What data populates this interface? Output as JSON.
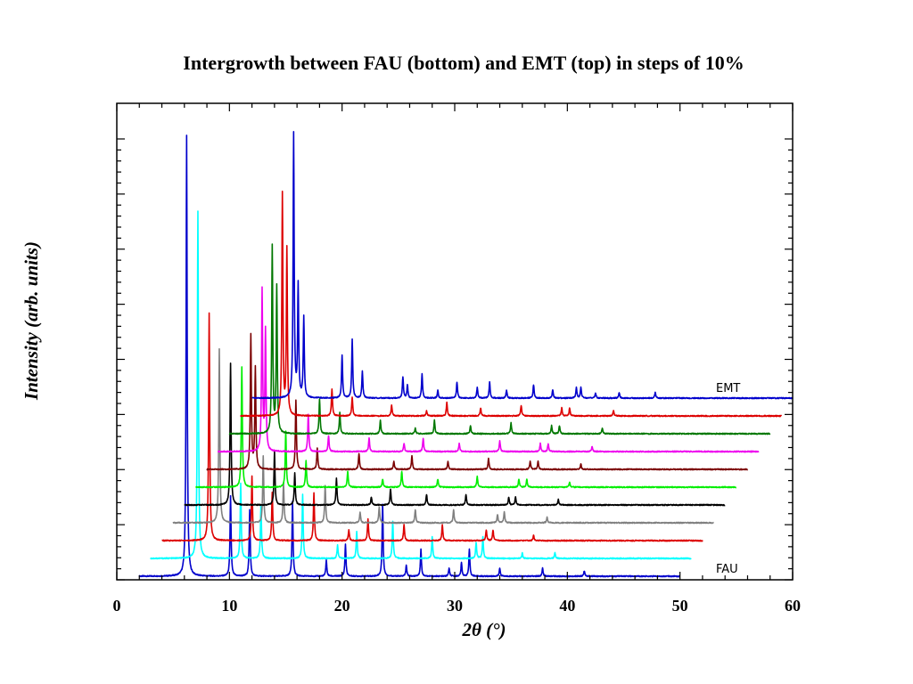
{
  "chart_data": {
    "type": "line",
    "title": "Intergrowth between FAU (bottom) and EMT (top) in steps of 10%",
    "xlabel": "2θ (°)",
    "ylabel": "Intensity (arb. units)",
    "xlim": [
      0,
      60
    ],
    "x_ticks": [
      0,
      10,
      20,
      30,
      40,
      50,
      60
    ],
    "x_tick_labels": [
      "0",
      "10",
      "20",
      "30",
      "40",
      "50",
      "60"
    ],
    "y_scale": "arbitrary",
    "grid": false,
    "stacked_offset_series": true,
    "series_labels": {
      "top": "EMT",
      "bottom": "FAU"
    },
    "series": [
      {
        "color": "#0000cc",
        "x_range": [
          2,
          50
        ],
        "peaks": [
          [
            6.2,
            1.65
          ],
          [
            10.1,
            0.3
          ],
          [
            11.8,
            0.25
          ],
          [
            15.6,
            0.28
          ],
          [
            18.6,
            0.06
          ],
          [
            20.3,
            0.12
          ],
          [
            23.6,
            0.27
          ],
          [
            25.7,
            0.04
          ],
          [
            27.0,
            0.1
          ],
          [
            29.5,
            0.03
          ],
          [
            30.6,
            0.05
          ],
          [
            31.3,
            0.1
          ],
          [
            34.0,
            0.03
          ],
          [
            37.8,
            0.03
          ],
          [
            41.5,
            0.02
          ]
        ]
      },
      {
        "color": "#00ffff",
        "x_range": [
          3,
          51
        ],
        "peaks": [
          [
            7.2,
            1.3
          ],
          [
            11.0,
            0.28
          ],
          [
            12.8,
            0.2
          ],
          [
            16.5,
            0.24
          ],
          [
            19.6,
            0.05
          ],
          [
            21.3,
            0.1
          ],
          [
            24.5,
            0.14
          ],
          [
            28.0,
            0.08
          ],
          [
            31.9,
            0.06
          ],
          [
            32.5,
            0.08
          ],
          [
            36.0,
            0.02
          ],
          [
            38.9,
            0.02
          ]
        ]
      },
      {
        "color": "#dd0000",
        "x_range": [
          4,
          52
        ],
        "peaks": [
          [
            8.2,
            0.85
          ],
          [
            12.0,
            0.24
          ],
          [
            13.8,
            0.18
          ],
          [
            17.5,
            0.18
          ],
          [
            20.6,
            0.04
          ],
          [
            22.3,
            0.08
          ],
          [
            25.5,
            0.06
          ],
          [
            28.9,
            0.06
          ],
          [
            32.8,
            0.04
          ],
          [
            33.4,
            0.04
          ],
          [
            37.0,
            0.02
          ]
        ]
      },
      {
        "color": "#808080",
        "x_range": [
          5,
          53
        ],
        "peaks": [
          [
            9.1,
            0.65
          ],
          [
            13.0,
            0.25
          ],
          [
            14.8,
            0.15
          ],
          [
            18.5,
            0.14
          ],
          [
            21.6,
            0.04
          ],
          [
            23.3,
            0.06
          ],
          [
            26.5,
            0.05
          ],
          [
            29.9,
            0.05
          ],
          [
            33.8,
            0.03
          ],
          [
            34.4,
            0.04
          ],
          [
            38.2,
            0.02
          ]
        ]
      },
      {
        "color": "#000000",
        "x_range": [
          6,
          54
        ],
        "peaks": [
          [
            10.1,
            0.53
          ],
          [
            14.0,
            0.2
          ],
          [
            15.8,
            0.12
          ],
          [
            19.5,
            0.1
          ],
          [
            22.6,
            0.03
          ],
          [
            24.3,
            0.06
          ],
          [
            27.5,
            0.04
          ],
          [
            31.0,
            0.04
          ],
          [
            34.8,
            0.03
          ],
          [
            35.4,
            0.03
          ],
          [
            39.2,
            0.02
          ]
        ]
      },
      {
        "color": "#00ee00",
        "x_range": [
          7,
          55
        ],
        "peaks": [
          [
            11.1,
            0.45
          ],
          [
            15.0,
            0.21
          ],
          [
            16.8,
            0.1
          ],
          [
            20.5,
            0.06
          ],
          [
            23.6,
            0.03
          ],
          [
            25.3,
            0.06
          ],
          [
            28.5,
            0.03
          ],
          [
            32.0,
            0.04
          ],
          [
            35.7,
            0.03
          ],
          [
            36.4,
            0.03
          ],
          [
            40.2,
            0.02
          ]
        ]
      },
      {
        "color": "#7a0000",
        "x_range": [
          8,
          56
        ],
        "peaks": [
          [
            11.9,
            0.5
          ],
          [
            12.3,
            0.38
          ],
          [
            15.9,
            0.26
          ],
          [
            17.8,
            0.08
          ],
          [
            21.5,
            0.06
          ],
          [
            24.6,
            0.03
          ],
          [
            26.2,
            0.05
          ],
          [
            29.4,
            0.03
          ],
          [
            33.0,
            0.04
          ],
          [
            36.7,
            0.03
          ],
          [
            37.4,
            0.03
          ],
          [
            41.2,
            0.02
          ]
        ]
      },
      {
        "color": "#ee00ee",
        "x_range": [
          9,
          57
        ],
        "peaks": [
          [
            12.9,
            0.6
          ],
          [
            13.2,
            0.45
          ],
          [
            17.0,
            0.14
          ],
          [
            18.8,
            0.06
          ],
          [
            22.4,
            0.05
          ],
          [
            25.5,
            0.03
          ],
          [
            27.2,
            0.05
          ],
          [
            30.4,
            0.03
          ],
          [
            34.0,
            0.04
          ],
          [
            37.6,
            0.03
          ],
          [
            38.3,
            0.03
          ],
          [
            42.2,
            0.02
          ]
        ]
      },
      {
        "color": "#007700",
        "x_range": [
          10,
          58
        ],
        "peaks": [
          [
            13.8,
            0.7
          ],
          [
            14.2,
            0.55
          ],
          [
            18.0,
            0.13
          ],
          [
            19.8,
            0.08
          ],
          [
            23.4,
            0.05
          ],
          [
            26.5,
            0.02
          ],
          [
            28.2,
            0.05
          ],
          [
            31.4,
            0.03
          ],
          [
            35.0,
            0.04
          ],
          [
            38.6,
            0.03
          ],
          [
            39.3,
            0.03
          ],
          [
            43.1,
            0.02
          ]
        ]
      },
      {
        "color": "#dd0000",
        "x_range": [
          11,
          59
        ],
        "peaks": [
          [
            14.7,
            0.83
          ],
          [
            15.1,
            0.62
          ],
          [
            19.1,
            0.1
          ],
          [
            20.9,
            0.07
          ],
          [
            24.4,
            0.04
          ],
          [
            27.5,
            0.02
          ],
          [
            29.3,
            0.05
          ],
          [
            32.3,
            0.03
          ],
          [
            35.9,
            0.04
          ],
          [
            39.5,
            0.03
          ],
          [
            40.2,
            0.03
          ],
          [
            44.1,
            0.02
          ]
        ]
      },
      {
        "color": "#0000cc",
        "x_range": [
          12,
          60
        ],
        "peaks": [
          [
            15.7,
            0.99
          ],
          [
            16.1,
            0.42
          ],
          [
            16.6,
            0.3
          ],
          [
            20.0,
            0.16
          ],
          [
            20.9,
            0.22
          ],
          [
            21.8,
            0.1
          ],
          [
            25.4,
            0.08
          ],
          [
            25.8,
            0.05
          ],
          [
            27.1,
            0.09
          ],
          [
            28.5,
            0.03
          ],
          [
            30.2,
            0.06
          ],
          [
            32.0,
            0.04
          ],
          [
            33.1,
            0.06
          ],
          [
            34.6,
            0.03
          ],
          [
            37.0,
            0.05
          ],
          [
            38.7,
            0.03
          ],
          [
            40.8,
            0.04
          ],
          [
            41.2,
            0.04
          ],
          [
            42.5,
            0.02
          ],
          [
            44.6,
            0.02
          ],
          [
            47.8,
            0.02
          ]
        ]
      }
    ]
  },
  "layout_note": ""
}
